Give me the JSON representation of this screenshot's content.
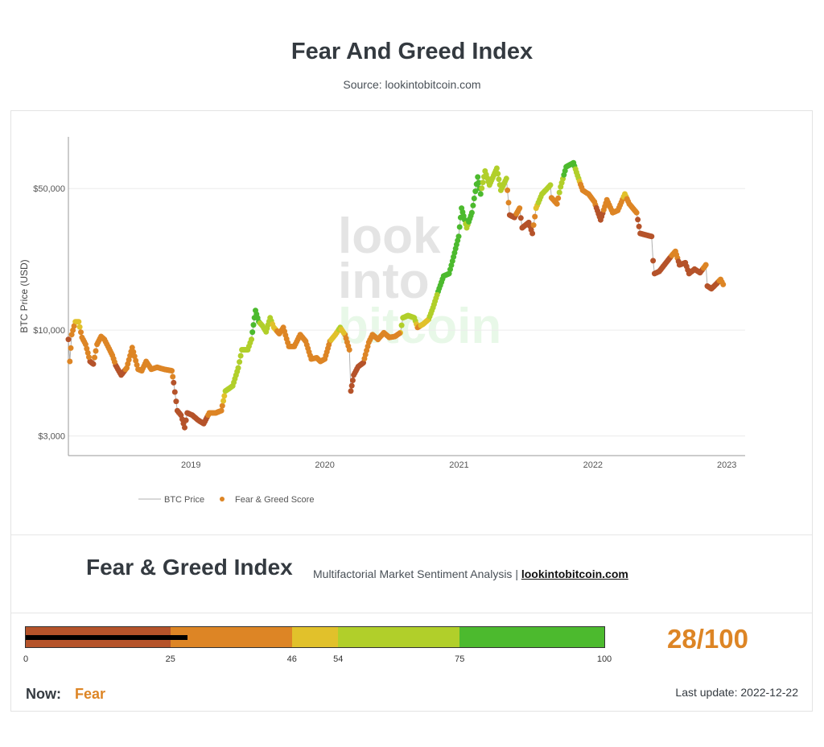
{
  "header": {
    "title": "Fear And Greed Index",
    "source": "Source: lookintobitcoin.com"
  },
  "watermark": {
    "line1": "look",
    "line2": "into",
    "line3": "bitcoin"
  },
  "index_section": {
    "heading": "Fear & Greed Index",
    "subtitle": "Multifactorial Market Sentiment Analysis | ",
    "link_text": "lookintobitcoin.com"
  },
  "gauge": {
    "segments": [
      {
        "from": 0,
        "to": 25,
        "color": "#b5532a"
      },
      {
        "from": 25,
        "to": 46,
        "color": "#dd8525"
      },
      {
        "from": 46,
        "to": 54,
        "color": "#e1c12b"
      },
      {
        "from": 54,
        "to": 75,
        "color": "#b1cf2a"
      },
      {
        "from": 75,
        "to": 100,
        "color": "#4cba2e"
      }
    ],
    "ticks": [
      "0",
      "25",
      "46",
      "54",
      "75",
      "100"
    ],
    "value": 28,
    "score_text": "28/100"
  },
  "now": {
    "label": "Now:",
    "value": "Fear",
    "color": "#dd8525"
  },
  "last_update": "Last update: 2022-12-22",
  "chart_data": {
    "type": "scatter",
    "title": "",
    "ylabel": "BTC Price (USD)",
    "xlabel": "",
    "y_scale": "log",
    "ylim": [
      2400,
      90000
    ],
    "xlim": [
      "2018-02-01",
      "2023-02-20"
    ],
    "y_ticks": [
      {
        "value": 3000,
        "label": "$3,000"
      },
      {
        "value": 10000,
        "label": "$10,000"
      },
      {
        "value": 50000,
        "label": "$50,000"
      }
    ],
    "x_ticks": [
      {
        "value": "2019-01-01",
        "label": "2019"
      },
      {
        "value": "2020-01-01",
        "label": "2020"
      },
      {
        "value": "2021-01-01",
        "label": "2021"
      },
      {
        "value": "2022-01-01",
        "label": "2022"
      },
      {
        "value": "2023-01-01",
        "label": "2023"
      }
    ],
    "legend": {
      "position": "bottom-left",
      "entries": [
        "BTC Price",
        "Fear & Greed Score"
      ]
    },
    "grid": true,
    "series": [
      {
        "name": "BTC Price",
        "type": "line",
        "color": "#b0b0b0",
        "points": [
          [
            "2018-02-01",
            9000,
            20
          ],
          [
            "2018-02-05",
            7000,
            25
          ],
          [
            "2018-02-10",
            9500,
            40
          ],
          [
            "2018-02-20",
            11000,
            48
          ],
          [
            "2018-03-01",
            11000,
            50
          ],
          [
            "2018-03-10",
            9200,
            40
          ],
          [
            "2018-03-20",
            8500,
            34
          ],
          [
            "2018-04-01",
            7000,
            24
          ],
          [
            "2018-04-10",
            6800,
            22
          ],
          [
            "2018-04-20",
            8500,
            38
          ],
          [
            "2018-05-01",
            9300,
            45
          ],
          [
            "2018-05-10",
            9000,
            42
          ],
          [
            "2018-05-20",
            8300,
            36
          ],
          [
            "2018-06-01",
            7500,
            30
          ],
          [
            "2018-06-10",
            6700,
            24
          ],
          [
            "2018-06-25",
            6000,
            20
          ],
          [
            "2018-07-10",
            6500,
            28
          ],
          [
            "2018-07-25",
            8200,
            40
          ],
          [
            "2018-08-10",
            6400,
            26
          ],
          [
            "2018-08-20",
            6300,
            25
          ],
          [
            "2018-09-01",
            7000,
            32
          ],
          [
            "2018-09-15",
            6400,
            28
          ],
          [
            "2018-10-01",
            6550,
            30
          ],
          [
            "2018-10-20",
            6400,
            32
          ],
          [
            "2018-11-10",
            6300,
            34
          ],
          [
            "2018-11-15",
            5500,
            20
          ],
          [
            "2018-11-25",
            4000,
            12
          ],
          [
            "2018-12-05",
            3800,
            13
          ],
          [
            "2018-12-15",
            3300,
            10
          ],
          [
            "2018-12-22",
            3900,
            20
          ],
          [
            "2019-01-05",
            3800,
            22
          ],
          [
            "2019-01-20",
            3600,
            20
          ],
          [
            "2019-02-05",
            3450,
            18
          ],
          [
            "2019-02-20",
            3900,
            28
          ],
          [
            "2019-03-10",
            3900,
            33
          ],
          [
            "2019-03-25",
            4000,
            40
          ],
          [
            "2019-04-05",
            5000,
            55
          ],
          [
            "2019-04-25",
            5300,
            58
          ],
          [
            "2019-05-10",
            6500,
            60
          ],
          [
            "2019-05-20",
            8000,
            68
          ],
          [
            "2019-06-05",
            8000,
            70
          ],
          [
            "2019-06-15",
            9000,
            74
          ],
          [
            "2019-06-26",
            12500,
            85
          ],
          [
            "2019-07-05",
            11000,
            78
          ],
          [
            "2019-07-15",
            10500,
            65
          ],
          [
            "2019-07-25",
            9800,
            55
          ],
          [
            "2019-08-05",
            11500,
            62
          ],
          [
            "2019-08-15",
            10300,
            48
          ],
          [
            "2019-08-30",
            9600,
            44
          ],
          [
            "2019-09-10",
            10300,
            44
          ],
          [
            "2019-09-25",
            8300,
            30
          ],
          [
            "2019-10-10",
            8300,
            32
          ],
          [
            "2019-10-26",
            9500,
            44
          ],
          [
            "2019-11-10",
            8800,
            38
          ],
          [
            "2019-11-25",
            7200,
            28
          ],
          [
            "2019-12-10",
            7300,
            28
          ],
          [
            "2019-12-20",
            7000,
            25
          ],
          [
            "2020-01-01",
            7200,
            30
          ],
          [
            "2020-01-15",
            8800,
            45
          ],
          [
            "2020-01-30",
            9500,
            52
          ],
          [
            "2020-02-12",
            10300,
            55
          ],
          [
            "2020-02-25",
            9500,
            45
          ],
          [
            "2020-03-08",
            8000,
            35
          ],
          [
            "2020-03-12",
            5000,
            12
          ],
          [
            "2020-03-20",
            6000,
            14
          ],
          [
            "2020-04-01",
            6600,
            18
          ],
          [
            "2020-04-15",
            6900,
            22
          ],
          [
            "2020-04-30",
            8700,
            38
          ],
          [
            "2020-05-10",
            9500,
            44
          ],
          [
            "2020-05-25",
            9000,
            40
          ],
          [
            "2020-06-10",
            9700,
            45
          ],
          [
            "2020-06-25",
            9200,
            42
          ],
          [
            "2020-07-10",
            9300,
            44
          ],
          [
            "2020-07-25",
            9700,
            46
          ],
          [
            "2020-08-01",
            11500,
            72
          ],
          [
            "2020-08-15",
            11800,
            70
          ],
          [
            "2020-09-01",
            11500,
            68
          ],
          [
            "2020-09-10",
            10300,
            44
          ],
          [
            "2020-09-25",
            10700,
            48
          ],
          [
            "2020-10-10",
            11300,
            55
          ],
          [
            "2020-10-22",
            12900,
            65
          ],
          [
            "2020-11-05",
            15500,
            75
          ],
          [
            "2020-11-20",
            18500,
            82
          ],
          [
            "2020-12-05",
            19000,
            85
          ],
          [
            "2020-12-17",
            23000,
            88
          ],
          [
            "2020-12-31",
            29000,
            92
          ],
          [
            "2021-01-08",
            40000,
            94
          ],
          [
            "2021-01-22",
            32000,
            70
          ],
          [
            "2021-02-05",
            38000,
            85
          ],
          [
            "2021-02-21",
            57000,
            94
          ],
          [
            "2021-03-01",
            47000,
            75
          ],
          [
            "2021-03-13",
            61000,
            70
          ],
          [
            "2021-03-25",
            52000,
            60
          ],
          [
            "2021-04-14",
            63000,
            72
          ],
          [
            "2021-04-25",
            49000,
            55
          ],
          [
            "2021-05-10",
            56000,
            66
          ],
          [
            "2021-05-13",
            49000,
            45
          ],
          [
            "2021-05-19",
            37000,
            20
          ],
          [
            "2021-06-01",
            36000,
            22
          ],
          [
            "2021-06-15",
            40000,
            30
          ],
          [
            "2021-06-22",
            32000,
            18
          ],
          [
            "2021-07-10",
            34000,
            22
          ],
          [
            "2021-07-20",
            30000,
            18
          ],
          [
            "2021-07-30",
            40000,
            50
          ],
          [
            "2021-08-15",
            47000,
            68
          ],
          [
            "2021-08-25",
            49000,
            72
          ],
          [
            "2021-09-07",
            52000,
            70
          ],
          [
            "2021-09-10",
            45000,
            38
          ],
          [
            "2021-09-25",
            42000,
            30
          ],
          [
            "2021-10-05",
            51000,
            70
          ],
          [
            "2021-10-20",
            64000,
            80
          ],
          [
            "2021-11-09",
            67000,
            82
          ],
          [
            "2021-11-20",
            58000,
            60
          ],
          [
            "2021-12-04",
            49000,
            30
          ],
          [
            "2021-12-20",
            47000,
            32
          ],
          [
            "2022-01-05",
            43000,
            30
          ],
          [
            "2022-01-22",
            35000,
            14
          ],
          [
            "2022-02-08",
            44000,
            40
          ],
          [
            "2022-02-24",
            38000,
            28
          ],
          [
            "2022-03-10",
            39000,
            30
          ],
          [
            "2022-03-29",
            47000,
            52
          ],
          [
            "2022-04-10",
            42000,
            38
          ],
          [
            "2022-04-30",
            38000,
            28
          ],
          [
            "2022-05-10",
            30000,
            14
          ],
          [
            "2022-05-25",
            29500,
            15
          ],
          [
            "2022-06-10",
            29000,
            14
          ],
          [
            "2022-06-14",
            22000,
            10
          ],
          [
            "2022-06-18",
            19000,
            8
          ],
          [
            "2022-07-01",
            19500,
            12
          ],
          [
            "2022-07-15",
            21000,
            18
          ],
          [
            "2022-08-01",
            23000,
            25
          ],
          [
            "2022-08-14",
            24500,
            30
          ],
          [
            "2022-08-25",
            21000,
            22
          ],
          [
            "2022-09-10",
            21500,
            22
          ],
          [
            "2022-09-20",
            19000,
            20
          ],
          [
            "2022-10-05",
            20000,
            24
          ],
          [
            "2022-10-20",
            19200,
            22
          ],
          [
            "2022-11-05",
            21000,
            28
          ],
          [
            "2022-11-09",
            16500,
            14
          ],
          [
            "2022-11-20",
            16000,
            16
          ],
          [
            "2022-12-05",
            17000,
            22
          ],
          [
            "2022-12-15",
            17800,
            28
          ],
          [
            "2022-12-22",
            16800,
            28
          ]
        ]
      },
      {
        "name": "Fear & Greed Score",
        "type": "scatter",
        "color": "#dd8525"
      }
    ]
  }
}
